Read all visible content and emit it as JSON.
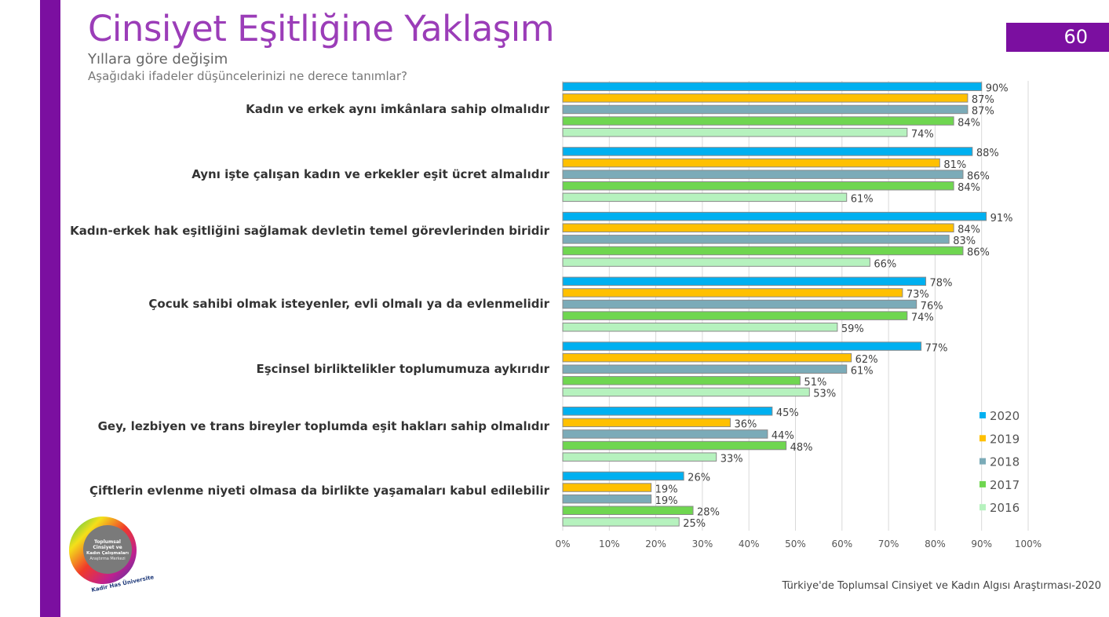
{
  "header": {
    "title": "Cinsiyet Eşitliğine Yaklaşım",
    "subtitle": "Yıllara göre değişim",
    "question": "Aşağıdaki ifadeler düşüncelerinizi ne derece tanımlar?",
    "page_number": "60"
  },
  "footer": {
    "source": "Türkiye'de Toplumsal Cinsiyet ve Kadın Algısı Araştırması-2020"
  },
  "logo": {
    "text": "Toplumsal Cinsiyet ve Kadın Çalışmaları Araştırma Merkezi",
    "ring_text": "Kadir Has Üniversitesi"
  },
  "chart_data": {
    "type": "bar",
    "orientation": "horizontal",
    "categories": [
      "Kadın ve erkek aynı imkânlara sahip olmalıdır",
      "Aynı işte çalışan kadın ve erkekler eşit ücret almalıdır",
      "Kadın-erkek hak eşitliğini sağlamak devletin temel görevlerinden biridir",
      "Çocuk sahibi olmak isteyenler, evli olmalı ya da evlenmelidir",
      "Eşcinsel birliktelikler toplumumuza aykırıdır",
      "Gey, lezbiyen ve trans bireyler toplumda eşit hakları sahip olmalıdır",
      "Çiftlerin evlenme niyeti olmasa da birlikte yaşamaları kabul edilebilir"
    ],
    "series": [
      {
        "name": "2020",
        "color": "#00B0F0",
        "values": [
          90,
          88,
          91,
          78,
          77,
          45,
          26
        ]
      },
      {
        "name": "2019",
        "color": "#FFC000",
        "values": [
          87,
          81,
          84,
          73,
          62,
          36,
          19
        ]
      },
      {
        "name": "2018",
        "color": "#7BABB8",
        "values": [
          87,
          86,
          83,
          76,
          61,
          44,
          19
        ]
      },
      {
        "name": "2017",
        "color": "#6FD650",
        "values": [
          84,
          84,
          86,
          74,
          51,
          48,
          28
        ]
      },
      {
        "name": "2016",
        "color": "#B6F2BE",
        "values": [
          74,
          61,
          66,
          59,
          53,
          33,
          25
        ]
      }
    ],
    "xlim": [
      0,
      100
    ],
    "xticks": [
      "0%",
      "10%",
      "20%",
      "30%",
      "40%",
      "50%",
      "60%",
      "70%",
      "80%",
      "90%",
      "100%"
    ],
    "grid": true,
    "legend": "right"
  }
}
